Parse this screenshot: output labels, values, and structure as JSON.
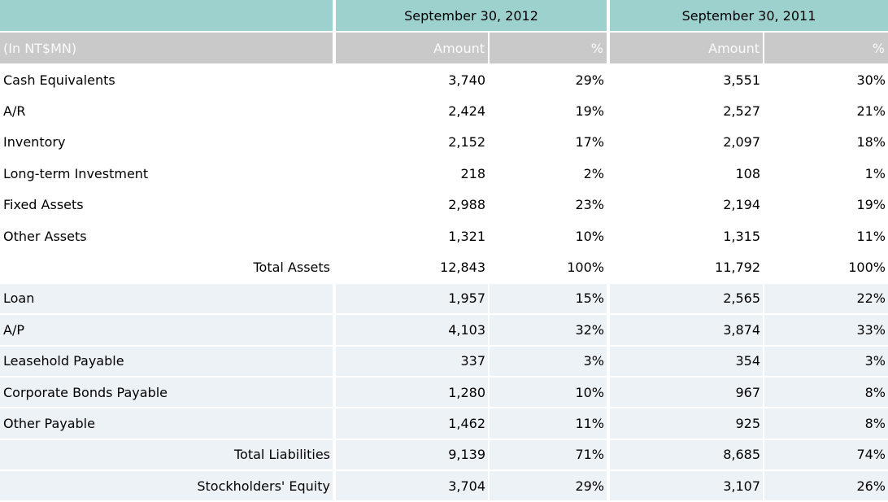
{
  "header": {
    "unit_label": "(In NT$MN)",
    "col_groups": [
      "September 30, 2012",
      "September 30, 2011"
    ],
    "amount_label": "Amount",
    "percent_label": "%"
  },
  "rows": [
    {
      "label": "Cash Equivalents",
      "section": "assets",
      "is_total": false,
      "y2012": {
        "amount": "3,740",
        "pct": "29%"
      },
      "y2011": {
        "amount": "3,551",
        "pct": "30%"
      }
    },
    {
      "label": "A/R",
      "section": "assets",
      "is_total": false,
      "y2012": {
        "amount": "2,424",
        "pct": "19%"
      },
      "y2011": {
        "amount": "2,527",
        "pct": "21%"
      }
    },
    {
      "label": "Inventory",
      "section": "assets",
      "is_total": false,
      "y2012": {
        "amount": "2,152",
        "pct": "17%"
      },
      "y2011": {
        "amount": "2,097",
        "pct": "18%"
      }
    },
    {
      "label": "Long-term Investment",
      "section": "assets",
      "is_total": false,
      "y2012": {
        "amount": "218",
        "pct": "2%"
      },
      "y2011": {
        "amount": "108",
        "pct": "1%"
      }
    },
    {
      "label": "Fixed Assets",
      "section": "assets",
      "is_total": false,
      "y2012": {
        "amount": "2,988",
        "pct": "23%"
      },
      "y2011": {
        "amount": "2,194",
        "pct": "19%"
      }
    },
    {
      "label": "Other Assets",
      "section": "assets",
      "is_total": false,
      "y2012": {
        "amount": "1,321",
        "pct": "10%"
      },
      "y2011": {
        "amount": "1,315",
        "pct": "11%"
      }
    },
    {
      "label": "Total Assets",
      "section": "assets",
      "is_total": true,
      "y2012": {
        "amount": "12,843",
        "pct": "100%"
      },
      "y2011": {
        "amount": "11,792",
        "pct": "100%"
      }
    },
    {
      "label": "Loan",
      "section": "liabilities",
      "is_total": false,
      "y2012": {
        "amount": "1,957",
        "pct": "15%"
      },
      "y2011": {
        "amount": "2,565",
        "pct": "22%"
      }
    },
    {
      "label": "A/P",
      "section": "liabilities",
      "is_total": false,
      "y2012": {
        "amount": "4,103",
        "pct": "32%"
      },
      "y2011": {
        "amount": "3,874",
        "pct": "33%"
      }
    },
    {
      "label": "Leasehold Payable",
      "section": "liabilities",
      "is_total": false,
      "y2012": {
        "amount": "337",
        "pct": "3%"
      },
      "y2011": {
        "amount": "354",
        "pct": "3%"
      }
    },
    {
      "label": "Corporate Bonds Payable",
      "section": "liabilities",
      "is_total": false,
      "y2012": {
        "amount": "1,280",
        "pct": "10%"
      },
      "y2011": {
        "amount": "967",
        "pct": "8%"
      }
    },
    {
      "label": "Other Payable",
      "section": "liabilities",
      "is_total": false,
      "y2012": {
        "amount": "1,462",
        "pct": "11%"
      },
      "y2011": {
        "amount": "925",
        "pct": "8%"
      }
    },
    {
      "label": "Total Liabilities",
      "section": "liabilities",
      "is_total": true,
      "y2012": {
        "amount": "9,139",
        "pct": "71%"
      },
      "y2011": {
        "amount": "8,685",
        "pct": "74%"
      }
    },
    {
      "label": "Stockholders' Equity",
      "section": "equity",
      "is_total": true,
      "y2012": {
        "amount": "3,704",
        "pct": "29%"
      },
      "y2011": {
        "amount": "3,107",
        "pct": "26%"
      }
    }
  ],
  "colors": {
    "header_teal": "#9DD1CE",
    "header_gray": "#C9C9C9",
    "row_light_blue": "#EDF2F7",
    "separator_white": "#FFFFFF",
    "header_text_light": "#FAFAFA",
    "body_text": "#000000"
  },
  "chart_data": {
    "type": "table",
    "title": "Balance sheet summary (In NT$MN)",
    "columns": [
      "(In NT$MN)",
      "September 30, 2012 Amount",
      "September 30, 2012 %",
      "September 30, 2011 Amount",
      "September 30, 2011 %"
    ],
    "rows": [
      [
        "Cash Equivalents",
        3740,
        29,
        3551,
        30
      ],
      [
        "A/R",
        2424,
        19,
        2527,
        21
      ],
      [
        "Inventory",
        2152,
        17,
        2097,
        18
      ],
      [
        "Long-term Investment",
        218,
        2,
        108,
        1
      ],
      [
        "Fixed Assets",
        2988,
        23,
        2194,
        19
      ],
      [
        "Other Assets",
        1321,
        10,
        1315,
        11
      ],
      [
        "Total Assets",
        12843,
        100,
        11792,
        100
      ],
      [
        "Loan",
        1957,
        15,
        2565,
        22
      ],
      [
        "A/P",
        4103,
        32,
        3874,
        33
      ],
      [
        "Leasehold Payable",
        337,
        3,
        354,
        3
      ],
      [
        "Corporate Bonds Payable",
        1280,
        10,
        967,
        8
      ],
      [
        "Other Payable",
        1462,
        11,
        925,
        8
      ],
      [
        "Total Liabilities",
        9139,
        71,
        8685,
        74
      ],
      [
        "Stockholders' Equity",
        3704,
        29,
        3107,
        26
      ]
    ]
  }
}
